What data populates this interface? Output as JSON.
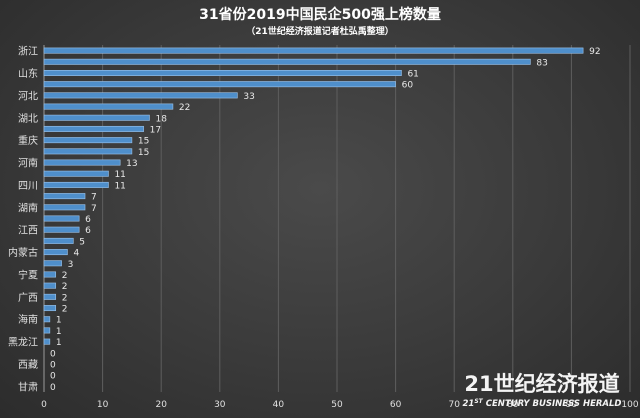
{
  "chart_data": {
    "type": "bar",
    "orientation": "horizontal",
    "title": "31省份2019中国民企500强上榜数量",
    "subtitle": "（21世纪经济报道记者杜弘禹整理）",
    "categories": [
      "浙江",
      "",
      "山东",
      "",
      "河北",
      "",
      "湖北",
      "",
      "重庆",
      "",
      "河南",
      "",
      "四川",
      "",
      "湖南",
      "",
      "江西",
      "",
      "内蒙古",
      "",
      "宁夏",
      "",
      "广西",
      "",
      "海南",
      "",
      "黑龙江",
      "",
      "西藏",
      "",
      "甘肃"
    ],
    "values": [
      92,
      83,
      61,
      60,
      33,
      22,
      18,
      17,
      15,
      15,
      13,
      11,
      11,
      7,
      7,
      6,
      6,
      5,
      4,
      3,
      2,
      2,
      2,
      2,
      1,
      1,
      1,
      0,
      0,
      0,
      0
    ],
    "xlim": [
      0,
      100
    ],
    "xticks": [
      "0",
      "10",
      "20",
      "30",
      "40",
      "50",
      "60",
      "70",
      "80",
      "90",
      "100"
    ],
    "grid": true,
    "bar_color": "#4f8fcb"
  },
  "watermark": {
    "cn": "21世纪经济报道",
    "en_num": "21",
    "en_sup": "ST",
    "en_rest": " CENTURY BUSINESS HERALD"
  }
}
